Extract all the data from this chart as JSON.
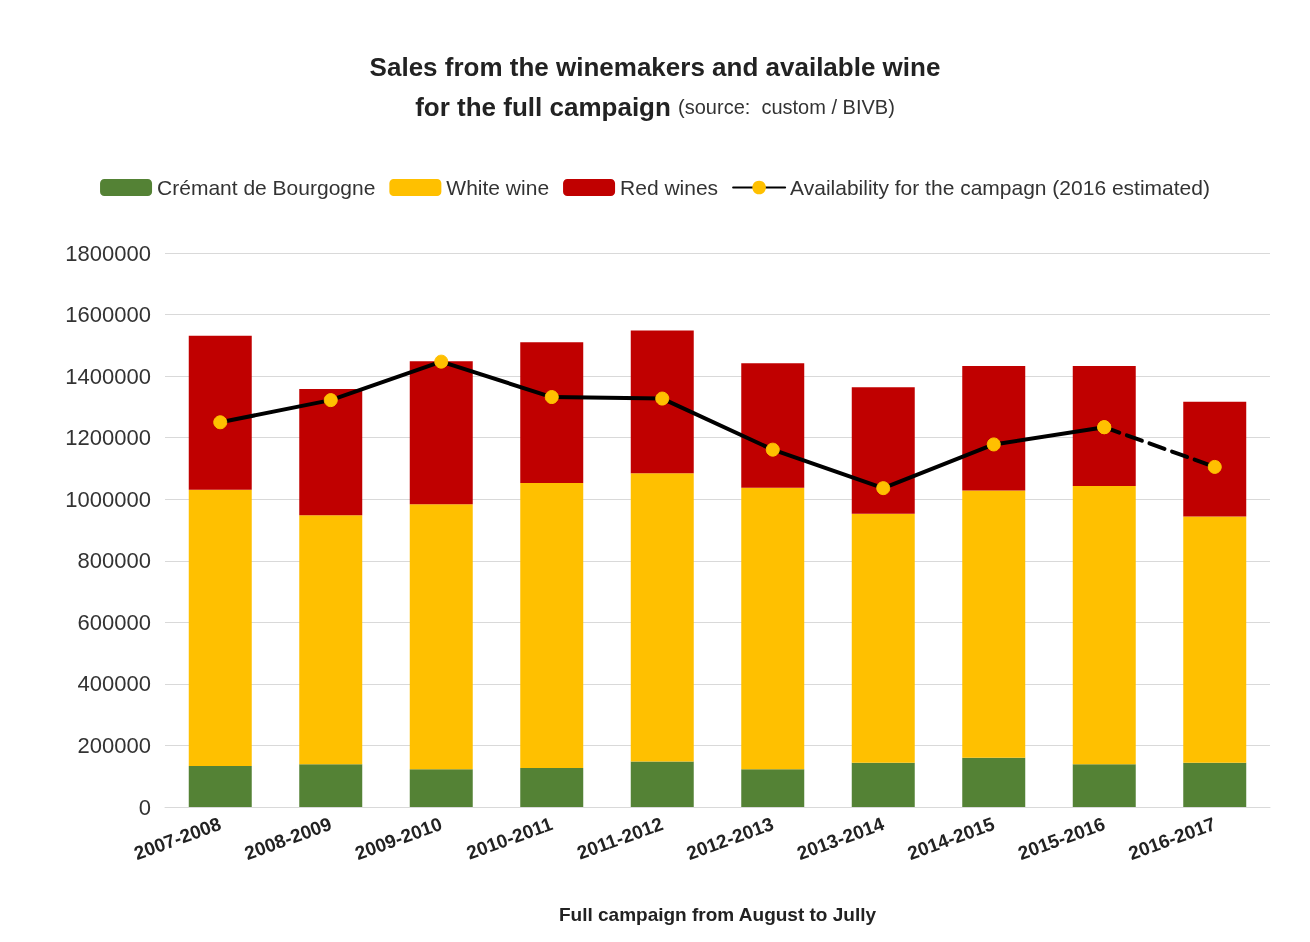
{
  "chart_data": {
    "type": "bar",
    "stacked": true,
    "title": "Sales from the winemakers and available wine\nfor the full campaign",
    "annotations": [
      "(source:  custom / BIVB)"
    ],
    "xlabel": "Full campaign from August to Jully",
    "categories": [
      "2007-2008",
      "2008-2009",
      "2009-2010",
      "2010-2011",
      "2011-2012",
      "2012-2013",
      "2013-2014",
      "2014-2015",
      "2015-2016",
      "2016-2017"
    ],
    "series": [
      {
        "name": "Crémant de Bourgogne",
        "color": "#548235",
        "values": [
          133000,
          139000,
          123000,
          127000,
          148000,
          123000,
          144000,
          160000,
          139000,
          144000
        ]
      },
      {
        "name": "White wine",
        "color": "#ffc000",
        "values": [
          898000,
          809000,
          861000,
          926000,
          936000,
          914000,
          809000,
          868000,
          904000,
          800000
        ]
      },
      {
        "name": "Red wines",
        "color": "#c00000",
        "values": [
          500000,
          410000,
          464000,
          457000,
          464000,
          405000,
          411000,
          405000,
          390000,
          373000
        ]
      },
      {
        "name": "Availability for the campagn (2016 estimated)",
        "type": "line",
        "color": "#000000",
        "marker": "circle",
        "line_style": "solid",
        "values": [
          1250000,
          1322000,
          1447000,
          1332000,
          1327000,
          1161000,
          1036000,
          1178000,
          1234000,
          null
        ]
      },
      {
        "type": "line",
        "color": "#000000",
        "marker": "circle",
        "line_style": "dashed",
        "values": [
          null,
          null,
          null,
          null,
          null,
          null,
          null,
          null,
          1234000,
          1105000
        ]
      }
    ],
    "ylim": [
      0,
      1800000
    ],
    "yticks": [
      0,
      200000,
      400000,
      600000,
      800000,
      1000000,
      1200000,
      1400000,
      1600000,
      1800000
    ],
    "grid": "y",
    "legend": "top"
  }
}
